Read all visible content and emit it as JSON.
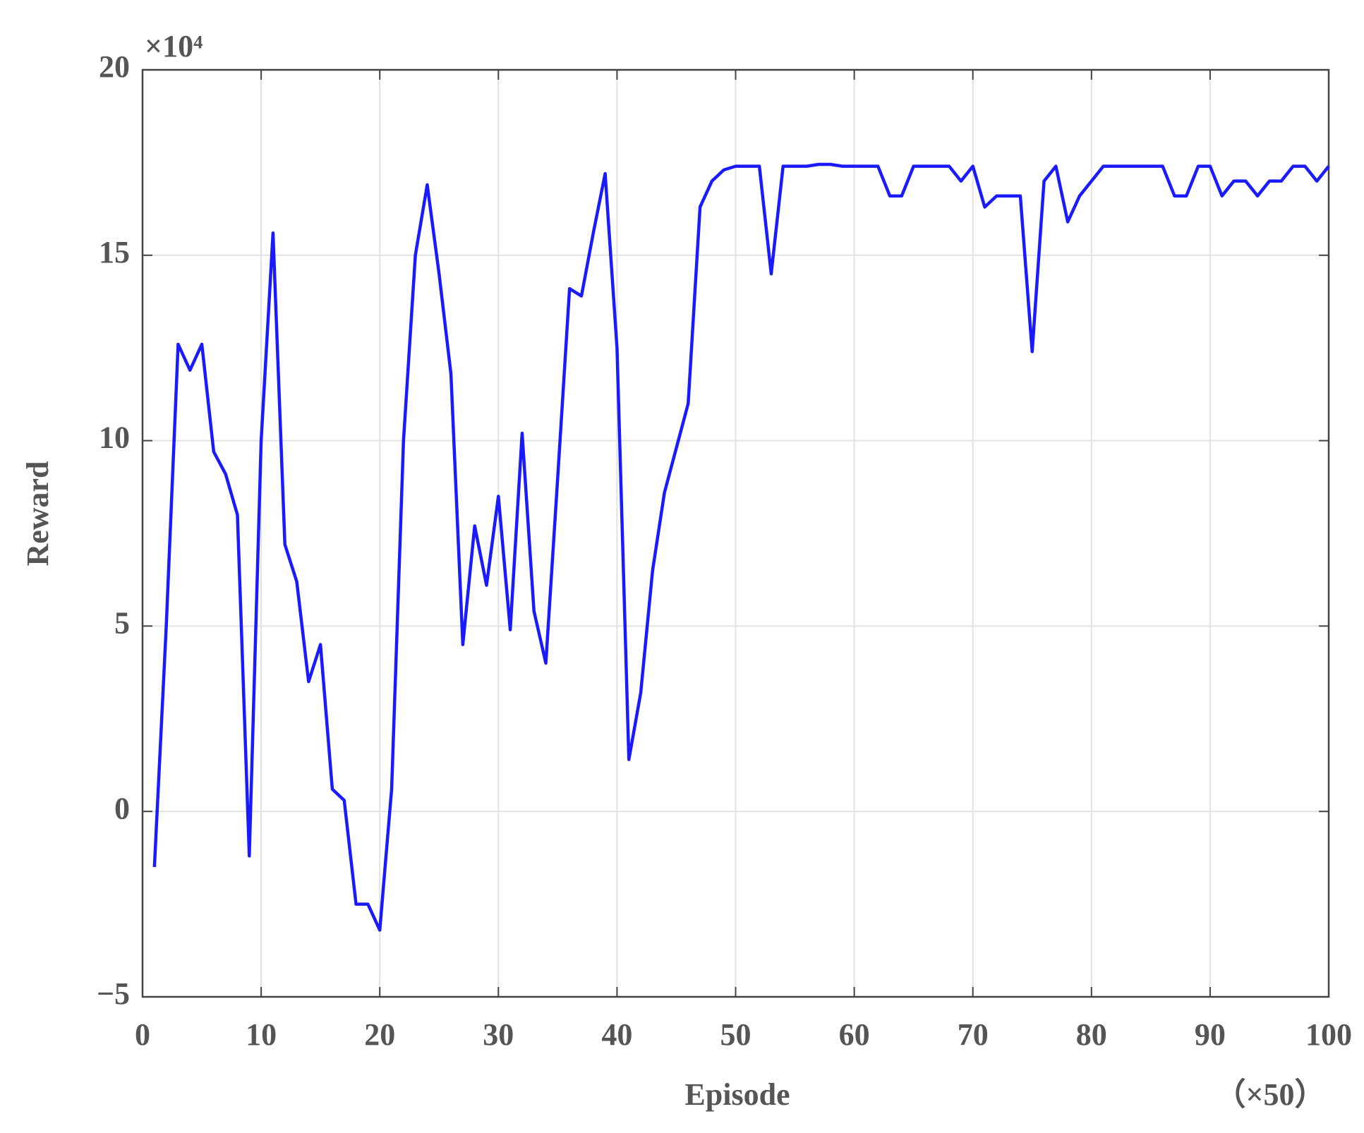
{
  "chart_data": {
    "type": "line",
    "xlabel": "Episode",
    "ylabel": "Reward",
    "y_multiplier": "×10⁴",
    "x_multiplier": "（×50）",
    "x": [
      1,
      2,
      3,
      4,
      5,
      6,
      7,
      8,
      9,
      10,
      11,
      12,
      13,
      14,
      15,
      16,
      17,
      18,
      19,
      20,
      21,
      22,
      23,
      24,
      25,
      26,
      27,
      28,
      29,
      30,
      31,
      32,
      33,
      34,
      35,
      36,
      37,
      38,
      39,
      40,
      41,
      42,
      43,
      44,
      45,
      46,
      47,
      48,
      49,
      50,
      51,
      52,
      53,
      54,
      55,
      56,
      57,
      58,
      59,
      60,
      61,
      62,
      63,
      64,
      65,
      66,
      67,
      68,
      69,
      70,
      71,
      72,
      73,
      74,
      75,
      76,
      77,
      78,
      79,
      80,
      81,
      82,
      83,
      84,
      85,
      86,
      87,
      88,
      89,
      90,
      91,
      92,
      93,
      94,
      95,
      96,
      97,
      98,
      99,
      100
    ],
    "series": [
      {
        "color": "#1a1aff",
        "values": [
          -1.5,
          5,
          12.6,
          11.9,
          12.6,
          9.7,
          9.1,
          8.0,
          -1.2,
          10,
          15.6,
          7.2,
          6.2,
          3.5,
          4.5,
          0.6,
          0.3,
          -2.5,
          -2.5,
          -3.2,
          0.6,
          10,
          15,
          16.9,
          14.5,
          11.8,
          4.5,
          7.7,
          6.1,
          8.5,
          4.9,
          10.2,
          5.4,
          4.0,
          9,
          14.1,
          13.9,
          15.6,
          17.2,
          12.5,
          1.4,
          3.2,
          6.5,
          8.6,
          9.8,
          11,
          16.3,
          17,
          17.3,
          17.4,
          17.4,
          17.4,
          14.5,
          17.4,
          17.4,
          17.4,
          17.45,
          17.45,
          17.4,
          17.4,
          17.4,
          17.4,
          16.6,
          16.6,
          17.4,
          17.4,
          17.4,
          17.4,
          17.0,
          17.4,
          16.3,
          16.6,
          16.6,
          16.6,
          12.4,
          17.0,
          17.4,
          15.9,
          16.6,
          17.0,
          17.4,
          17.4,
          17.4,
          17.4,
          17.4,
          17.4,
          16.6,
          16.6,
          17.4,
          17.4,
          16.6,
          17.0,
          17.0,
          16.6,
          17.0,
          17.0,
          17.4,
          17.4,
          17.0,
          17.4
        ]
      }
    ],
    "xlim": [
      0,
      100
    ],
    "xticks": [
      0,
      10,
      20,
      30,
      40,
      50,
      60,
      70,
      80,
      90,
      100
    ],
    "ylim": [
      -5,
      20
    ],
    "yticks": [
      {
        "value": -5,
        "label": "−5"
      },
      0,
      5,
      10,
      15,
      20
    ],
    "grid": true
  }
}
